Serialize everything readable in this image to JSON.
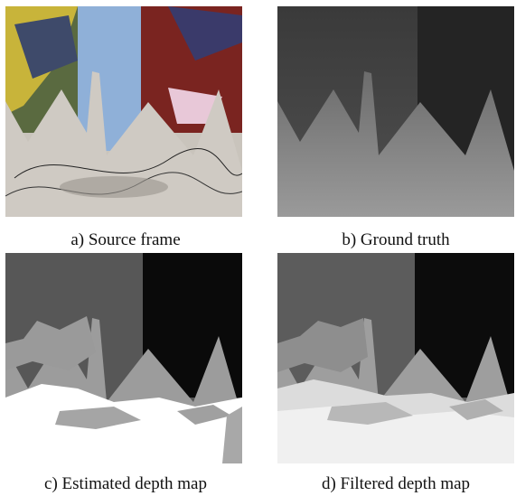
{
  "figure": {
    "panels": [
      {
        "caption": "a) Source frame"
      },
      {
        "caption": "b) Ground truth"
      },
      {
        "caption": "c) Estimated depth map"
      },
      {
        "caption": "d) Filtered depth map"
      }
    ]
  }
}
